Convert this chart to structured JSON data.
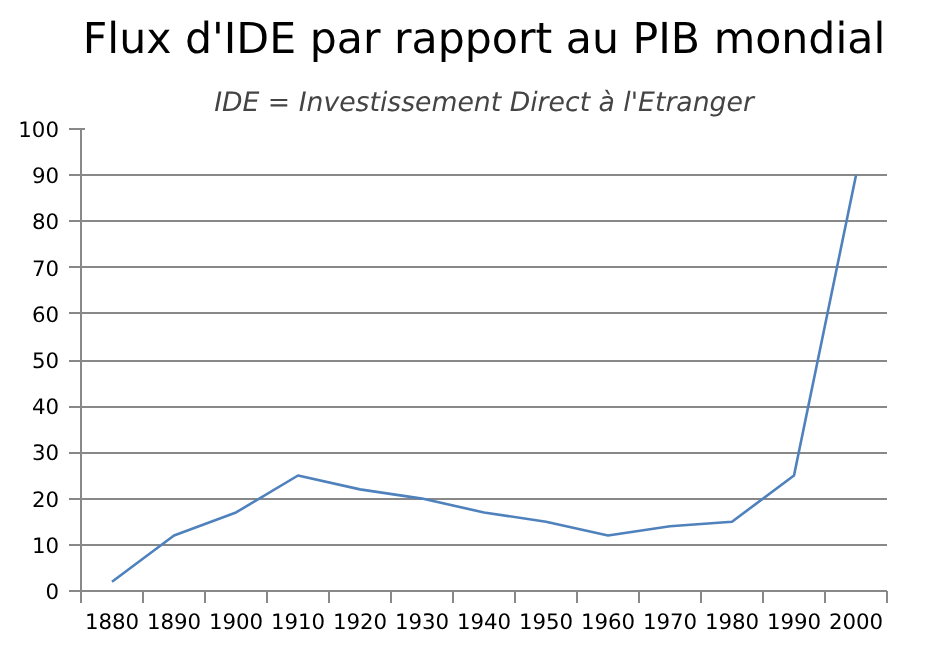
{
  "chart_data": {
    "type": "line",
    "title": "Flux d'IDE par rapport au PIB mondial",
    "subtitle": "IDE = Investissement Direct à l'Etranger",
    "categories": [
      "1880",
      "1890",
      "1900",
      "1910",
      "1920",
      "1930",
      "1940",
      "1950",
      "1960",
      "1970",
      "1980",
      "1990",
      "2000"
    ],
    "series": [
      {
        "color": "#4f81bd",
        "values": [
          2,
          12,
          17,
          25,
          22,
          20,
          17,
          15,
          12,
          14,
          15,
          25,
          90
        ]
      }
    ],
    "ylim": [
      0,
      100
    ],
    "yticks": [
      0,
      10,
      20,
      30,
      40,
      50,
      60,
      70,
      80,
      90,
      100
    ],
    "grid": "y",
    "marker": "none",
    "line_style": "solid"
  }
}
